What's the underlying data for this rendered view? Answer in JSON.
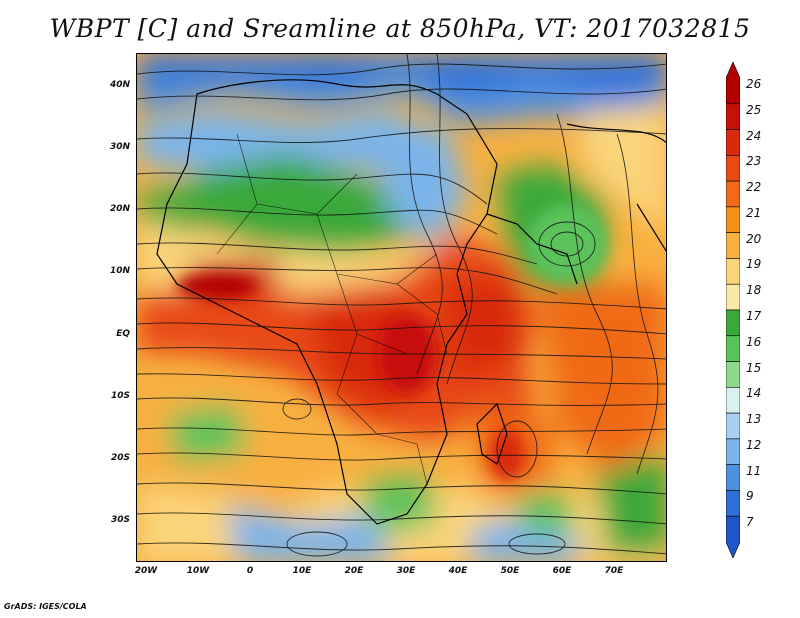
{
  "title": "WBPT [C] and Sreamline at 850hPa, VT: 2017032815",
  "footer": "GrADS: IGES/COLA",
  "map": {
    "lat_labels": [
      "40N",
      "30N",
      "20N",
      "10N",
      "EQ",
      "10S",
      "20S",
      "30S"
    ],
    "lon_labels": [
      "20W",
      "10W",
      "0",
      "10E",
      "20E",
      "30E",
      "40E",
      "50E",
      "60E",
      "70E"
    ]
  },
  "colorbar": {
    "labels": [
      "26",
      "25",
      "24",
      "23",
      "22",
      "21",
      "20",
      "19",
      "18",
      "17",
      "16",
      "15",
      "14",
      "13",
      "12",
      "11",
      "9",
      "7"
    ],
    "colors": [
      "#b30000",
      "#c8100a",
      "#d92a0f",
      "#e84a12",
      "#f06a18",
      "#f5901e",
      "#f8b040",
      "#fad47a",
      "#fbe9a8",
      "#3aa83a",
      "#5cc25c",
      "#8fd98f",
      "#d8f2f0",
      "#a8d0f0",
      "#7ab4ea",
      "#4f8fe0",
      "#2f6fd8",
      "#1f55c8"
    ]
  }
}
